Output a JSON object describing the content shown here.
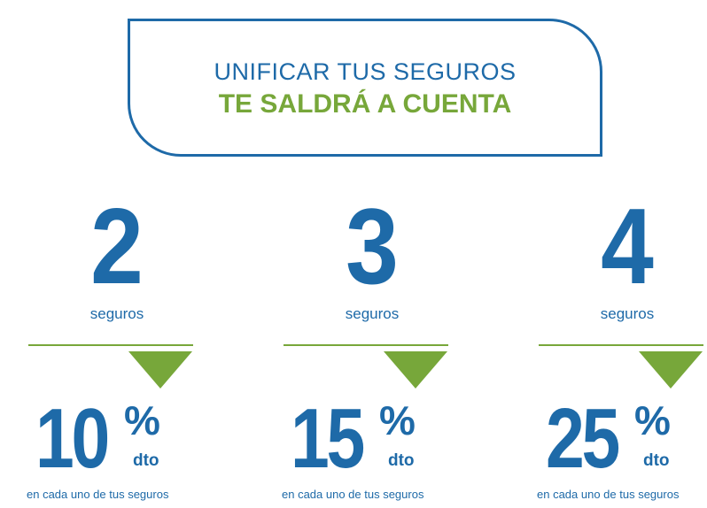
{
  "headline": {
    "line1": "UNIFICAR TUS SEGUROS",
    "line2": "TE SALDRÁ A CUENTA"
  },
  "colors": {
    "blue": "#1e6aa8",
    "green": "#77a73a"
  },
  "offers": [
    {
      "count": "2",
      "count_label": "seguros",
      "percent": "10",
      "percent_sign": "%",
      "unit": "dto",
      "footnote": "en cada uno de tus seguros"
    },
    {
      "count": "3",
      "count_label": "seguros",
      "percent": "15",
      "percent_sign": "%",
      "unit": "dto",
      "footnote": "en cada uno de tus seguros"
    },
    {
      "count": "4",
      "count_label": "seguros",
      "percent": "25",
      "percent_sign": "%",
      "unit": "dto",
      "footnote": "en cada uno de tus seguros"
    }
  ]
}
